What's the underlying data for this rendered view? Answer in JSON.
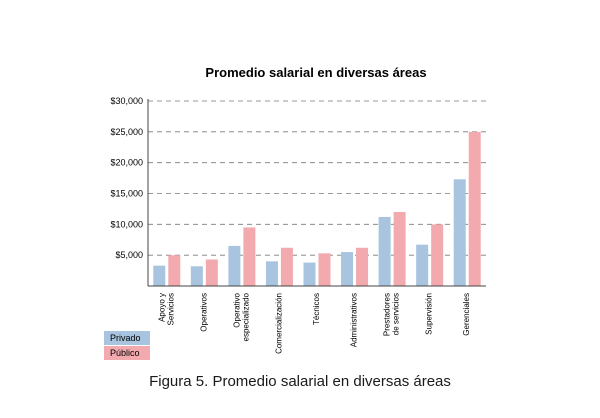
{
  "caption": {
    "label": "Figura 5.",
    "text": "Promedio salarial en diversas áreas"
  },
  "colors": {
    "privado": "#a8c4df",
    "publico": "#f2aaaf",
    "grid": "#7a7a7a",
    "axis": "#444444"
  },
  "chart_data": {
    "type": "bar",
    "title": "Promedio salarial en diversas áreas",
    "xlabel": "",
    "ylabel": "",
    "ylim": [
      0,
      30000
    ],
    "yticks": [
      5000,
      10000,
      15000,
      20000,
      25000,
      30000
    ],
    "ytick_labels": [
      "$5,000",
      "$10,000",
      "$15,000",
      "$20,000",
      "$25,000",
      "$30,000"
    ],
    "grid": true,
    "legend_position": "bottom-left",
    "categories": [
      [
        "Apoyo y",
        "Servicios"
      ],
      [
        "Operativos"
      ],
      [
        "Operativo",
        "especializado"
      ],
      [
        "Comercialización"
      ],
      [
        "Técnicos"
      ],
      [
        "Administrativos"
      ],
      [
        "Prestadores",
        "de servicios"
      ],
      [
        "Supervisión"
      ],
      [
        "Gerenciales"
      ]
    ],
    "series": [
      {
        "name": "Privado",
        "values": [
          3300,
          3200,
          6500,
          4000,
          3800,
          5500,
          11200,
          6700,
          17300
        ]
      },
      {
        "name": "Público",
        "values": [
          5000,
          4300,
          9500,
          6200,
          5300,
          6200,
          12000,
          10000,
          25000
        ]
      }
    ]
  }
}
